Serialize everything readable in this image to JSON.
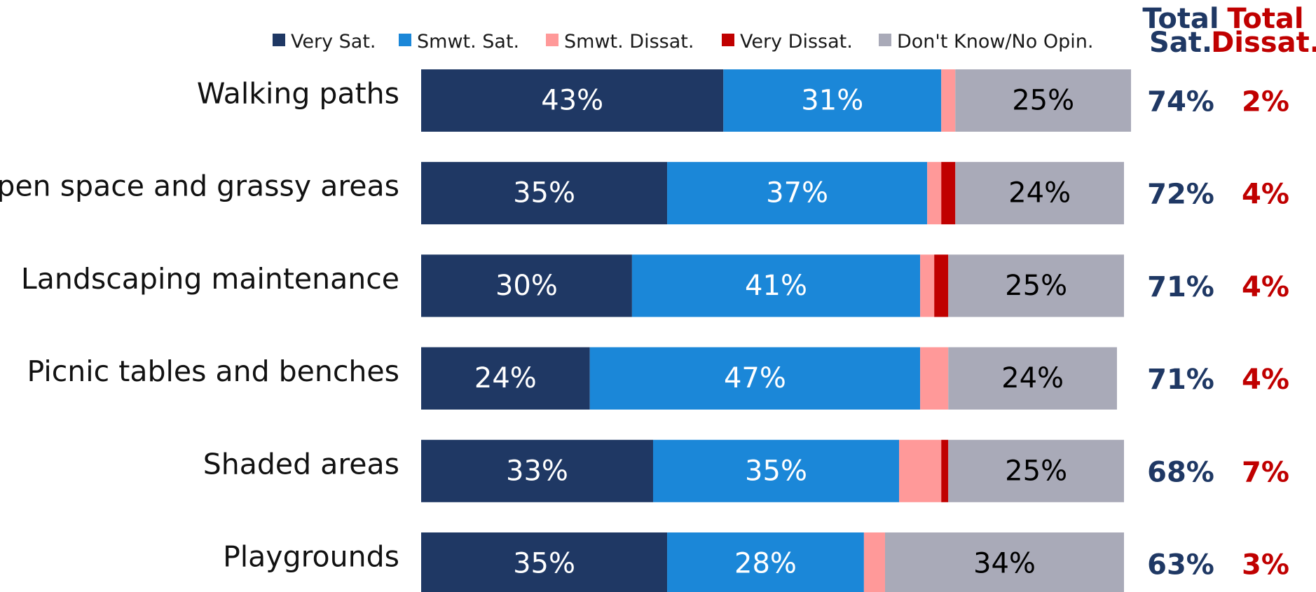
{
  "chart_data": {
    "type": "bar",
    "orientation": "horizontal",
    "stacked": true,
    "legend_position": "top",
    "grid": false,
    "xlim": [
      0,
      100
    ],
    "categories": [
      "Walking paths",
      "Open space and grassy areas",
      "Landscaping maintenance",
      "Picnic tables and benches",
      "Shaded areas",
      "Playgrounds"
    ],
    "series": [
      {
        "name": "Very Sat.",
        "color": "#1f3864",
        "label_color": "#ffffff",
        "values": [
          43,
          35,
          30,
          24,
          33,
          35
        ],
        "labels": [
          "43%",
          "35%",
          "30%",
          "24%",
          "33%",
          "35%"
        ]
      },
      {
        "name": "Smwt. Sat.",
        "color": "#1b87d8",
        "label_color": "#ffffff",
        "values": [
          31,
          37,
          41,
          47,
          35,
          28
        ],
        "labels": [
          "31%",
          "37%",
          "41%",
          "47%",
          "35%",
          "28%"
        ]
      },
      {
        "name": "Smwt. Dissat.",
        "color": "#ff9999",
        "label_color": "#000000",
        "values": [
          2,
          2,
          2,
          4,
          6,
          3
        ],
        "labels": [
          "",
          "",
          "",
          "",
          "",
          ""
        ]
      },
      {
        "name": "Very Dissat.",
        "color": "#c00000",
        "label_color": "#ffffff",
        "values": [
          0,
          2,
          2,
          0,
          1,
          0
        ],
        "labels": [
          "",
          "",
          "",
          "",
          "",
          ""
        ]
      },
      {
        "name": "Don't Know/No Opin.",
        "color": "#a9aab8",
        "label_color": "#000000",
        "values": [
          25,
          24,
          25,
          24,
          25,
          34
        ],
        "labels": [
          "25%",
          "24%",
          "25%",
          "24%",
          "25%",
          "34%"
        ]
      }
    ],
    "totals": {
      "satisfied": {
        "header": [
          "Total",
          "Sat."
        ],
        "color": "#1f3864",
        "values": [
          "74%",
          "72%",
          "71%",
          "71%",
          "68%",
          "63%"
        ]
      },
      "dissatisfied": {
        "header": [
          "Total",
          "Dissat."
        ],
        "color": "#c00000",
        "values": [
          "2%",
          "4%",
          "4%",
          "4%",
          "7%",
          "3%"
        ]
      }
    }
  }
}
